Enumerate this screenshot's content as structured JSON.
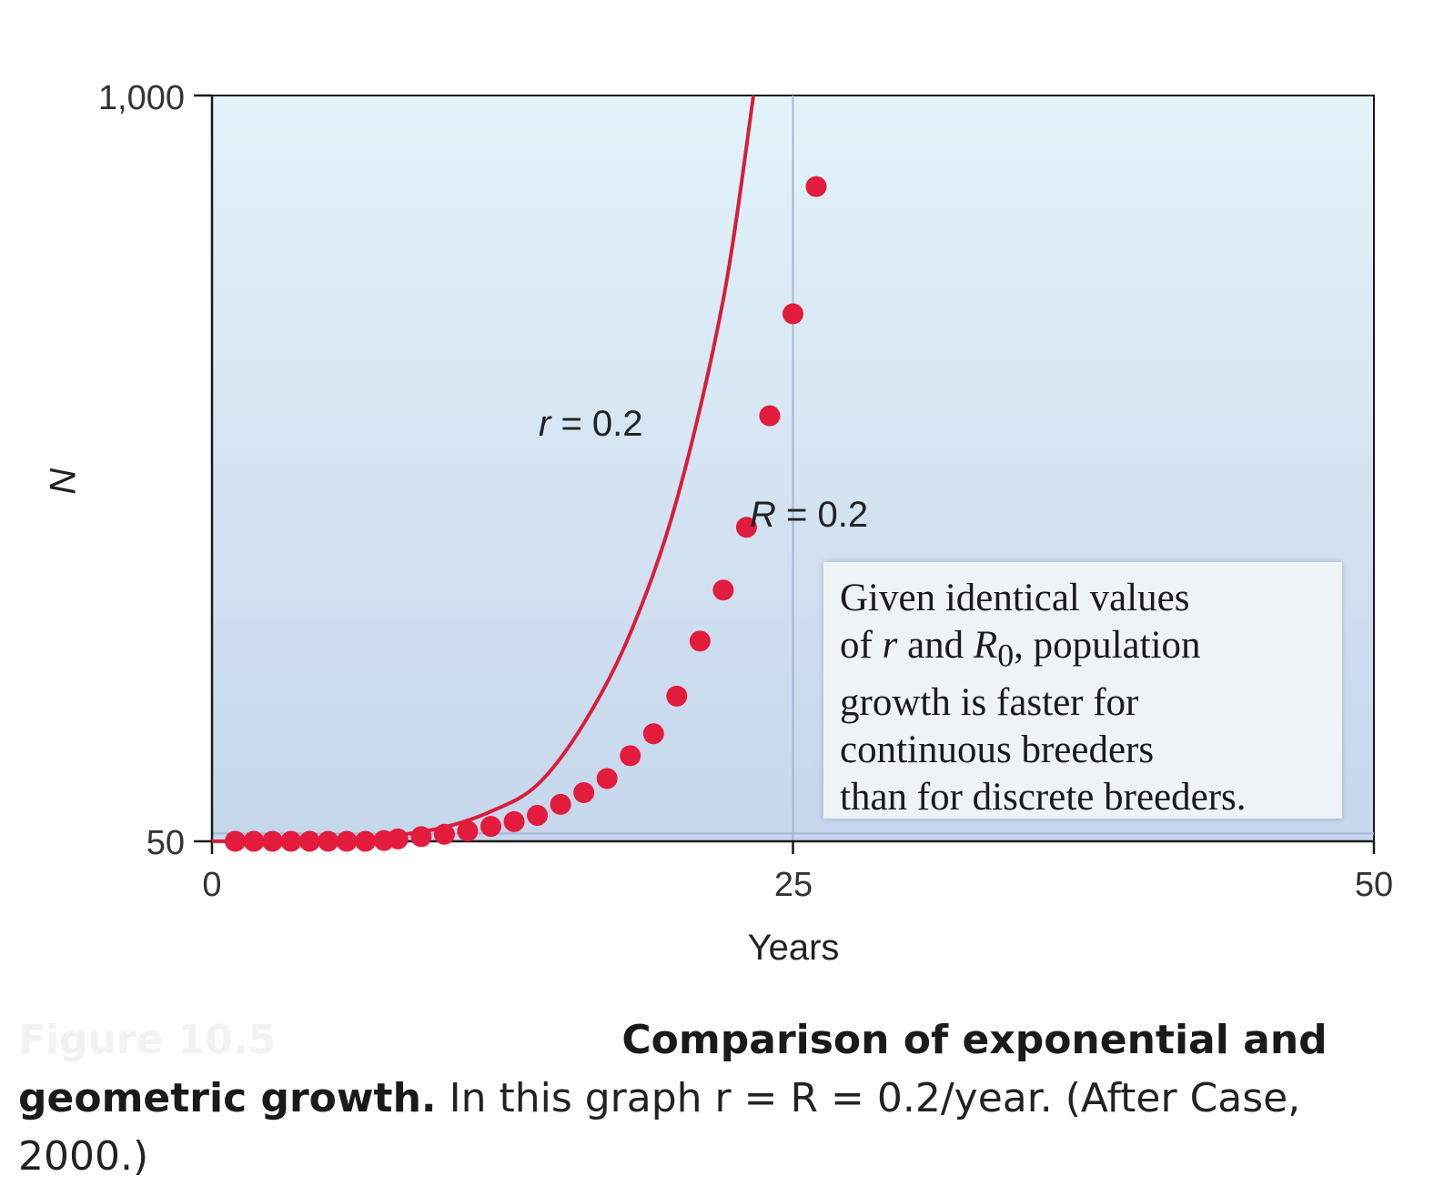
{
  "chart_data": {
    "type": "line",
    "xlabel": "Years",
    "ylabel": "N",
    "xlim": [
      0,
      50
    ],
    "ylim": [
      50,
      1000
    ],
    "x_ticks": [
      "0",
      "25",
      "50"
    ],
    "y_ticks": [
      "1,000",
      "50"
    ],
    "grid": false,
    "reference_lines": {
      "x": 25,
      "y": 60
    },
    "series": [
      {
        "name": "r = 0.2",
        "kind": "continuous",
        "color": "#d81e3a",
        "x": [
          0,
          2,
          4,
          6,
          8,
          10,
          12,
          14,
          16,
          18,
          20,
          22,
          23.3
        ],
        "y": [
          50,
          50,
          51,
          53,
          58,
          68,
          88,
          122,
          200,
          315,
          485,
          740,
          1000
        ]
      },
      {
        "name": "R = 0.2",
        "kind": "discrete",
        "color": "#e31b3c",
        "x": [
          1,
          1.8,
          2.6,
          3.4,
          4.2,
          5,
          5.8,
          6.6,
          7.4,
          8,
          9,
          10,
          11,
          12,
          13,
          14,
          15,
          16,
          17,
          18,
          19,
          20,
          21,
          22,
          23,
          24,
          25,
          26
        ],
        "y": [
          50,
          50,
          50,
          50,
          50,
          50,
          50,
          50,
          51,
          53,
          56,
          59,
          63,
          69,
          75,
          83,
          97,
          112,
          130,
          159,
          187,
          235,
          305,
          370,
          450,
          592,
          722,
          884
        ]
      }
    ],
    "annotations": [
      "Given identical values of r and R0, population growth is faster for continuous breeders than for discrete breeders."
    ]
  },
  "labels": {
    "r_label_var": "r",
    "r_label_rest": " = 0.2",
    "R_label_var": "R",
    "R_label_rest": " = 0.2"
  },
  "note": {
    "line1": "Given identical values",
    "line2_a": "of ",
    "line2_r": "r",
    "line2_b": " and ",
    "line2_R": "R",
    "line2_sub": "0",
    "line2_c": ", population",
    "line3": "growth is faster for",
    "line4": "continuous breeders",
    "line5": "than for discrete breeders."
  },
  "caption": {
    "figure_label": "Figure 10.5",
    "title": "Comparison of exponential and geometric growth.",
    "text": " In this graph r = R = 0.2/year. (After Case, 2000.)"
  },
  "colors": {
    "plot_bg_top": "#e3f3fa",
    "plot_bg_bottom": "#c6d6ec",
    "curve": "#d81e3a",
    "points": "#e31b3c",
    "refline": "#a6b6d2"
  }
}
